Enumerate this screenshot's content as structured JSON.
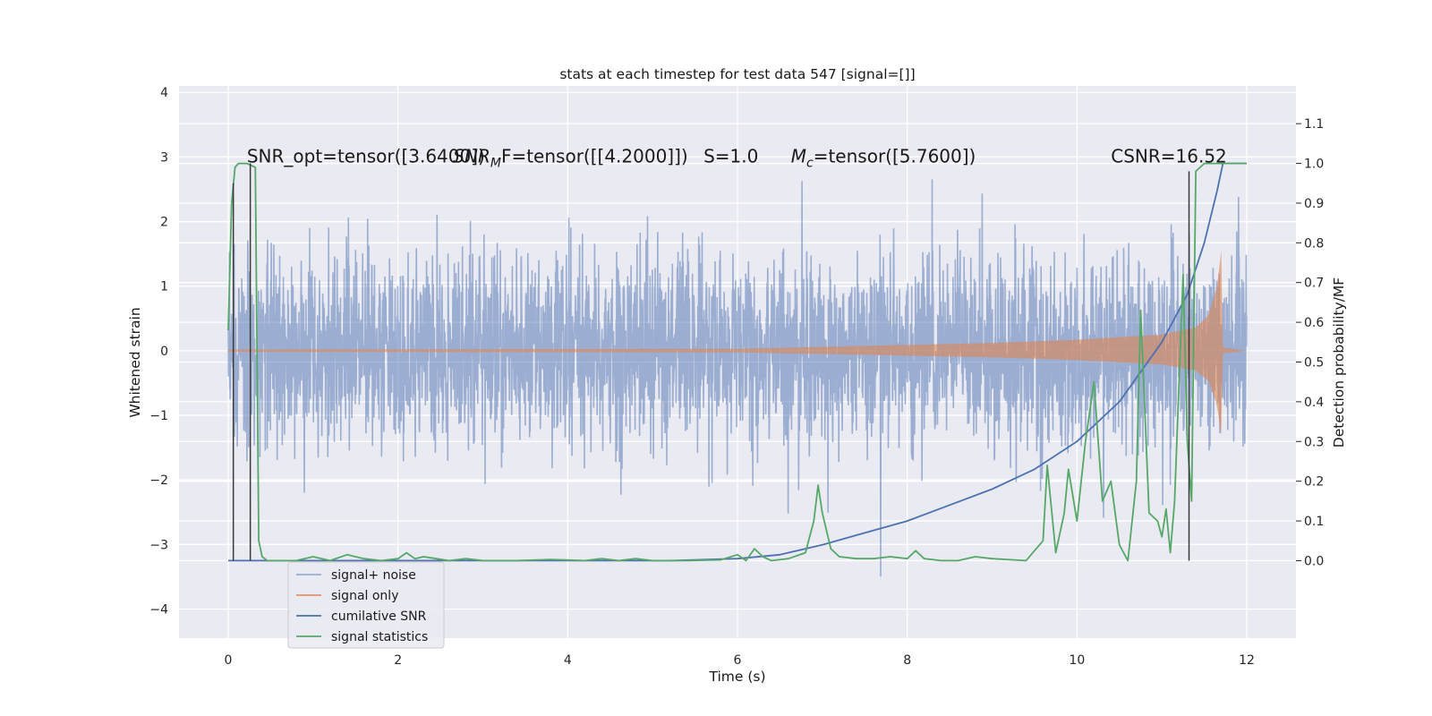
{
  "chart_data": {
    "type": "line",
    "title": "stats at each timestep for test data 547 [signal=[]]",
    "xlabel": "Time (s)",
    "ylabel_left": "Whitened strain",
    "ylabel_right": "Detection probability/MF",
    "xlim": [
      -0.58,
      12.58
    ],
    "ylim_left": [
      -4.45,
      4.1
    ],
    "ylim_right": [
      -0.195,
      1.195
    ],
    "xticks": [
      0,
      2,
      4,
      6,
      8,
      10,
      12
    ],
    "yticks_left": [
      -4,
      -3,
      -2,
      -1,
      0,
      1,
      2,
      3,
      4
    ],
    "yticks_right": [
      0.0,
      0.1,
      0.2,
      0.3,
      0.4,
      0.5,
      0.6,
      0.7,
      0.8,
      0.9,
      1.0,
      1.1
    ],
    "grid": true,
    "legend_position": "bottom-left",
    "annotations": [
      {
        "text": "SNR_opt=tensor([3.6400])",
        "x": 0.22,
        "y_right": 1.0
      },
      {
        "text": "SNR",
        "sub": "M",
        "after": "F=tensor([[4.2000]])",
        "x": 2.65,
        "y_right": 1.0
      },
      {
        "text": "S=1.0",
        "x": 5.6,
        "y_right": 1.0
      },
      {
        "text": "M",
        "sub": "c",
        "after": "=tensor([5.7600])",
        "x": 6.63,
        "y_right": 1.0
      },
      {
        "text": "CSNR=16.52",
        "x": 10.4,
        "y_right": 1.0
      }
    ],
    "vertical_lines": [
      {
        "x": 0.06,
        "y_right_range": [
          0.0,
          0.95
        ]
      },
      {
        "x": 0.26,
        "y_right_range": [
          0.0,
          1.0
        ]
      },
      {
        "x": 11.32,
        "y_right_range": [
          0.0,
          0.98
        ]
      }
    ],
    "series": [
      {
        "name": "signal+ noise",
        "axis": "left",
        "color": "#4c72b0",
        "alpha": 0.5,
        "t_range": [
          0,
          12
        ],
        "typical_amplitude": 1.65,
        "peak_amplitude": 3.5
      },
      {
        "name": "signal only",
        "axis": "left",
        "color": "#dd8452",
        "alpha": 0.6,
        "envelope_t": [
          0,
          6,
          7,
          8,
          9,
          10,
          11,
          11.4,
          11.55,
          11.65,
          11.7,
          11.72,
          12
        ],
        "envelope_amp": [
          0.02,
          0.03,
          0.06,
          0.09,
          0.12,
          0.17,
          0.25,
          0.36,
          0.55,
          1.0,
          1.55,
          0.05,
          0.0
        ]
      },
      {
        "name": "cumilative SNR",
        "axis": "right",
        "color": "#4c72b0",
        "x": [
          0,
          5.2,
          6.0,
          6.5,
          7.0,
          7.5,
          8.0,
          8.5,
          9.0,
          9.5,
          10.0,
          10.5,
          11.0,
          11.3,
          11.5,
          11.65,
          11.72,
          12.0
        ],
        "values": [
          0.0,
          0.0,
          0.005,
          0.015,
          0.04,
          0.07,
          0.1,
          0.14,
          0.18,
          0.23,
          0.3,
          0.4,
          0.55,
          0.67,
          0.8,
          0.93,
          1.0,
          1.0
        ]
      },
      {
        "name": "signal statistics",
        "axis": "right",
        "color": "#55a868",
        "x": [
          0.0,
          0.04,
          0.08,
          0.12,
          0.16,
          0.22,
          0.32,
          0.36,
          0.4,
          0.46,
          0.5,
          0.8,
          1.0,
          1.2,
          1.4,
          1.6,
          1.8,
          2.0,
          2.1,
          2.2,
          2.3,
          2.45,
          2.6,
          2.8,
          3.0,
          3.4,
          3.8,
          4.2,
          4.4,
          4.6,
          4.8,
          5.0,
          5.4,
          5.8,
          6.0,
          6.1,
          6.2,
          6.3,
          6.4,
          6.6,
          6.8,
          6.9,
          6.95,
          7.0,
          7.1,
          7.2,
          7.4,
          7.6,
          7.8,
          8.0,
          8.1,
          8.2,
          8.4,
          8.6,
          8.8,
          9.0,
          9.4,
          9.6,
          9.65,
          9.75,
          9.85,
          9.9,
          10.0,
          10.1,
          10.2,
          10.3,
          10.4,
          10.5,
          10.6,
          10.7,
          10.75,
          10.85,
          10.95,
          11.0,
          11.05,
          11.1,
          11.15,
          11.25,
          11.3,
          11.35,
          11.4,
          11.5,
          11.6,
          11.7,
          12.0
        ],
        "values": [
          0.58,
          0.9,
          0.99,
          1.0,
          1.0,
          1.0,
          0.99,
          0.05,
          0.01,
          0.0,
          0.0,
          0.0,
          0.01,
          0.0,
          0.015,
          0.005,
          0.0,
          0.005,
          0.02,
          0.005,
          0.01,
          0.005,
          0.0,
          0.005,
          0.0,
          0.0,
          0.003,
          0.0,
          0.005,
          0.0,
          0.005,
          0.0,
          0.0,
          0.002,
          0.015,
          0.0,
          0.03,
          0.01,
          0.0,
          0.005,
          0.02,
          0.1,
          0.19,
          0.12,
          0.03,
          0.01,
          0.005,
          0.005,
          0.01,
          0.005,
          0.025,
          0.005,
          0.0,
          0.0,
          0.01,
          0.005,
          0.0,
          0.05,
          0.24,
          0.02,
          0.12,
          0.23,
          0.1,
          0.3,
          0.45,
          0.15,
          0.2,
          0.04,
          0.0,
          0.2,
          0.63,
          0.12,
          0.1,
          0.06,
          0.13,
          0.02,
          0.15,
          0.72,
          0.3,
          0.15,
          0.98,
          1.0,
          1.0,
          1.0,
          1.0
        ]
      }
    ]
  }
}
